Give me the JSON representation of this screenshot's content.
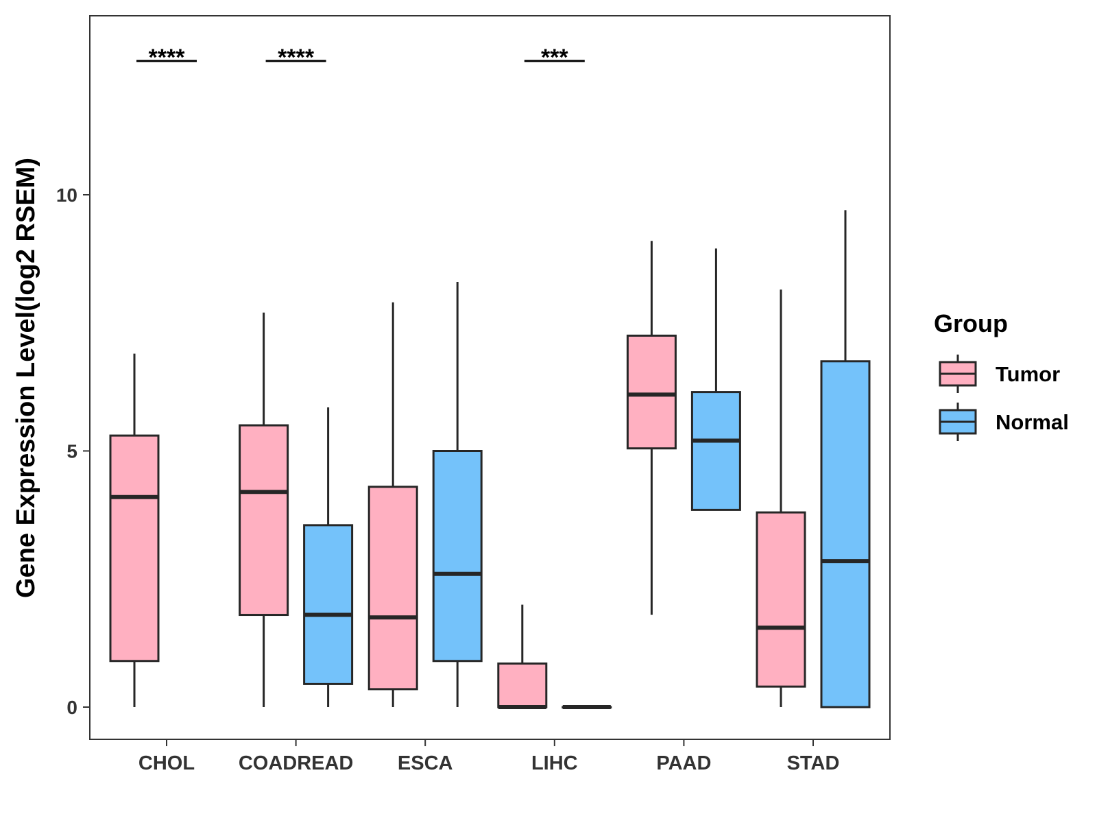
{
  "chart_data": {
    "type": "boxplot",
    "title": "",
    "xlabel": "",
    "ylabel": "Gene Expression Level(log2 RSEM)",
    "ylim": [
      -0.65,
      13.5
    ],
    "yticks": [
      0,
      5,
      10
    ],
    "categories": [
      "CHOL",
      "COADREAD",
      "ESCA",
      "LIHC",
      "PAAD",
      "STAD"
    ],
    "legend": {
      "title": "Group",
      "placement": "right",
      "entries": [
        {
          "name": "Tumor",
          "color": "#FFB0C1"
        },
        {
          "name": "Normal",
          "color": "#74C2FA"
        }
      ]
    },
    "series": [
      {
        "name": "Tumor",
        "color": "#FFB0C1",
        "boxes": [
          {
            "category": "CHOL",
            "min": 0,
            "q1": 0.9,
            "median": 4.1,
            "q3": 5.3,
            "max": 6.9
          },
          {
            "category": "COADREAD",
            "min": 0,
            "q1": 1.8,
            "median": 4.2,
            "q3": 5.5,
            "max": 7.7
          },
          {
            "category": "ESCA",
            "min": 0,
            "q1": 0.35,
            "median": 1.75,
            "q3": 4.3,
            "max": 7.9
          },
          {
            "category": "LIHC",
            "min": 0,
            "q1": 0,
            "median": 0,
            "q3": 0.85,
            "max": 2.0
          },
          {
            "category": "PAAD",
            "min": 1.8,
            "q1": 5.05,
            "median": 6.1,
            "q3": 7.25,
            "max": 9.1
          },
          {
            "category": "STAD",
            "min": 0,
            "q1": 0.4,
            "median": 1.55,
            "q3": 3.8,
            "max": 8.15
          }
        ]
      },
      {
        "name": "Normal",
        "color": "#74C2FA",
        "boxes": [
          {
            "category": "CHOL",
            "missing": true
          },
          {
            "category": "COADREAD",
            "min": 0,
            "q1": 0.45,
            "median": 1.8,
            "q3": 3.55,
            "max": 5.85
          },
          {
            "category": "ESCA",
            "min": 0,
            "q1": 0.9,
            "median": 2.6,
            "q3": 5.0,
            "max": 8.3
          },
          {
            "category": "LIHC",
            "min": 0,
            "q1": 0,
            "median": 0,
            "q3": 0,
            "max": 0
          },
          {
            "category": "PAAD",
            "min": 3.85,
            "q1": 3.85,
            "median": 5.2,
            "q3": 6.15,
            "max": 8.95
          },
          {
            "category": "STAD",
            "min": 0,
            "q1": 0,
            "median": 2.85,
            "q3": 6.75,
            "max": 9.7
          }
        ]
      }
    ],
    "annotations": [
      {
        "category": "CHOL",
        "label": "****",
        "y": 12.8
      },
      {
        "category": "COADREAD",
        "label": "****",
        "y": 12.8
      },
      {
        "category": "LIHC",
        "label": "***",
        "y": 12.8
      }
    ],
    "grid": false
  }
}
